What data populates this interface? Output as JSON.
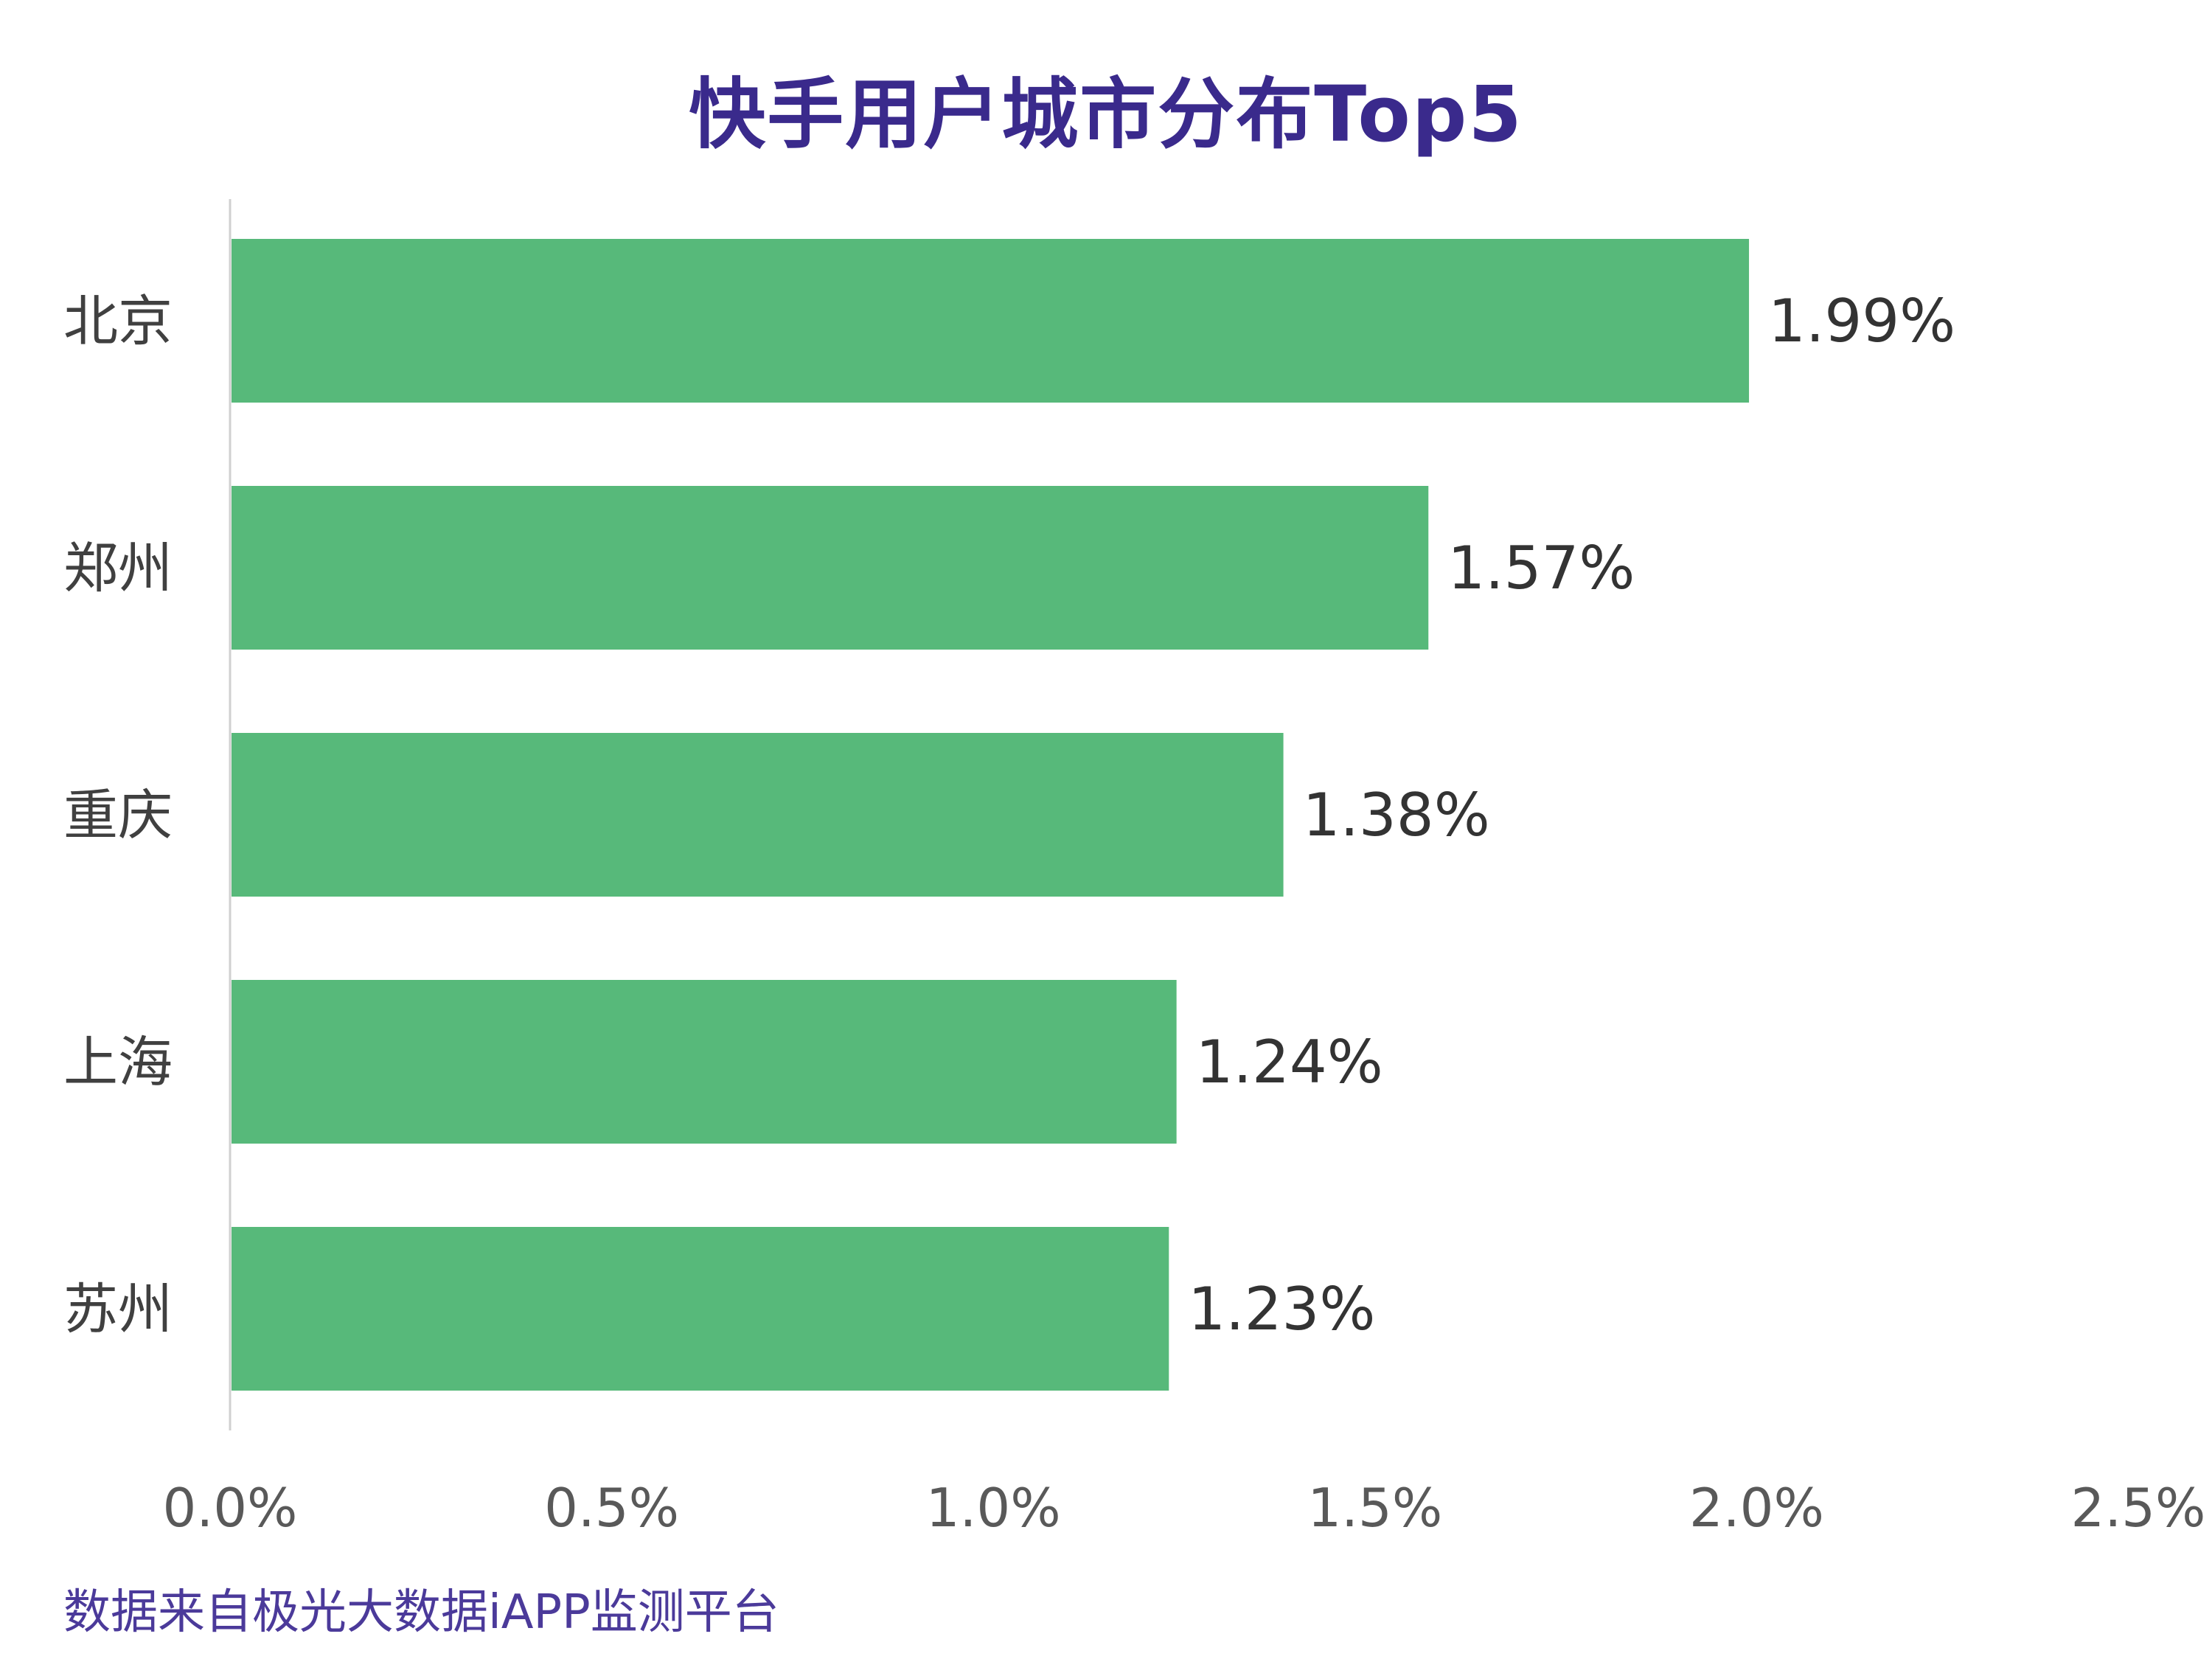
{
  "chart_data": {
    "type": "bar",
    "orientation": "horizontal",
    "title": "快手用户城市分布Top5",
    "categories": [
      "北京",
      "郑州",
      "重庆",
      "上海",
      "苏州"
    ],
    "values": [
      1.99,
      1.57,
      1.38,
      1.24,
      1.23
    ],
    "value_labels": [
      "1.99%",
      "1.57%",
      "1.38%",
      "1.24%",
      "1.23%"
    ],
    "xlim": [
      0,
      2.5
    ],
    "xticks": [
      0,
      0.5,
      1.0,
      1.5,
      2.0,
      2.5
    ],
    "xtick_labels": [
      "0.0%",
      "0.5%",
      "1.0%",
      "1.5%",
      "2.0%",
      "2.5%"
    ],
    "xlabel": "",
    "ylabel": "",
    "grid": false,
    "bar_color": "#57b97a",
    "title_color": "#3a2a8c"
  },
  "source_note": "数据来自极光大数据iAPP监测平台"
}
